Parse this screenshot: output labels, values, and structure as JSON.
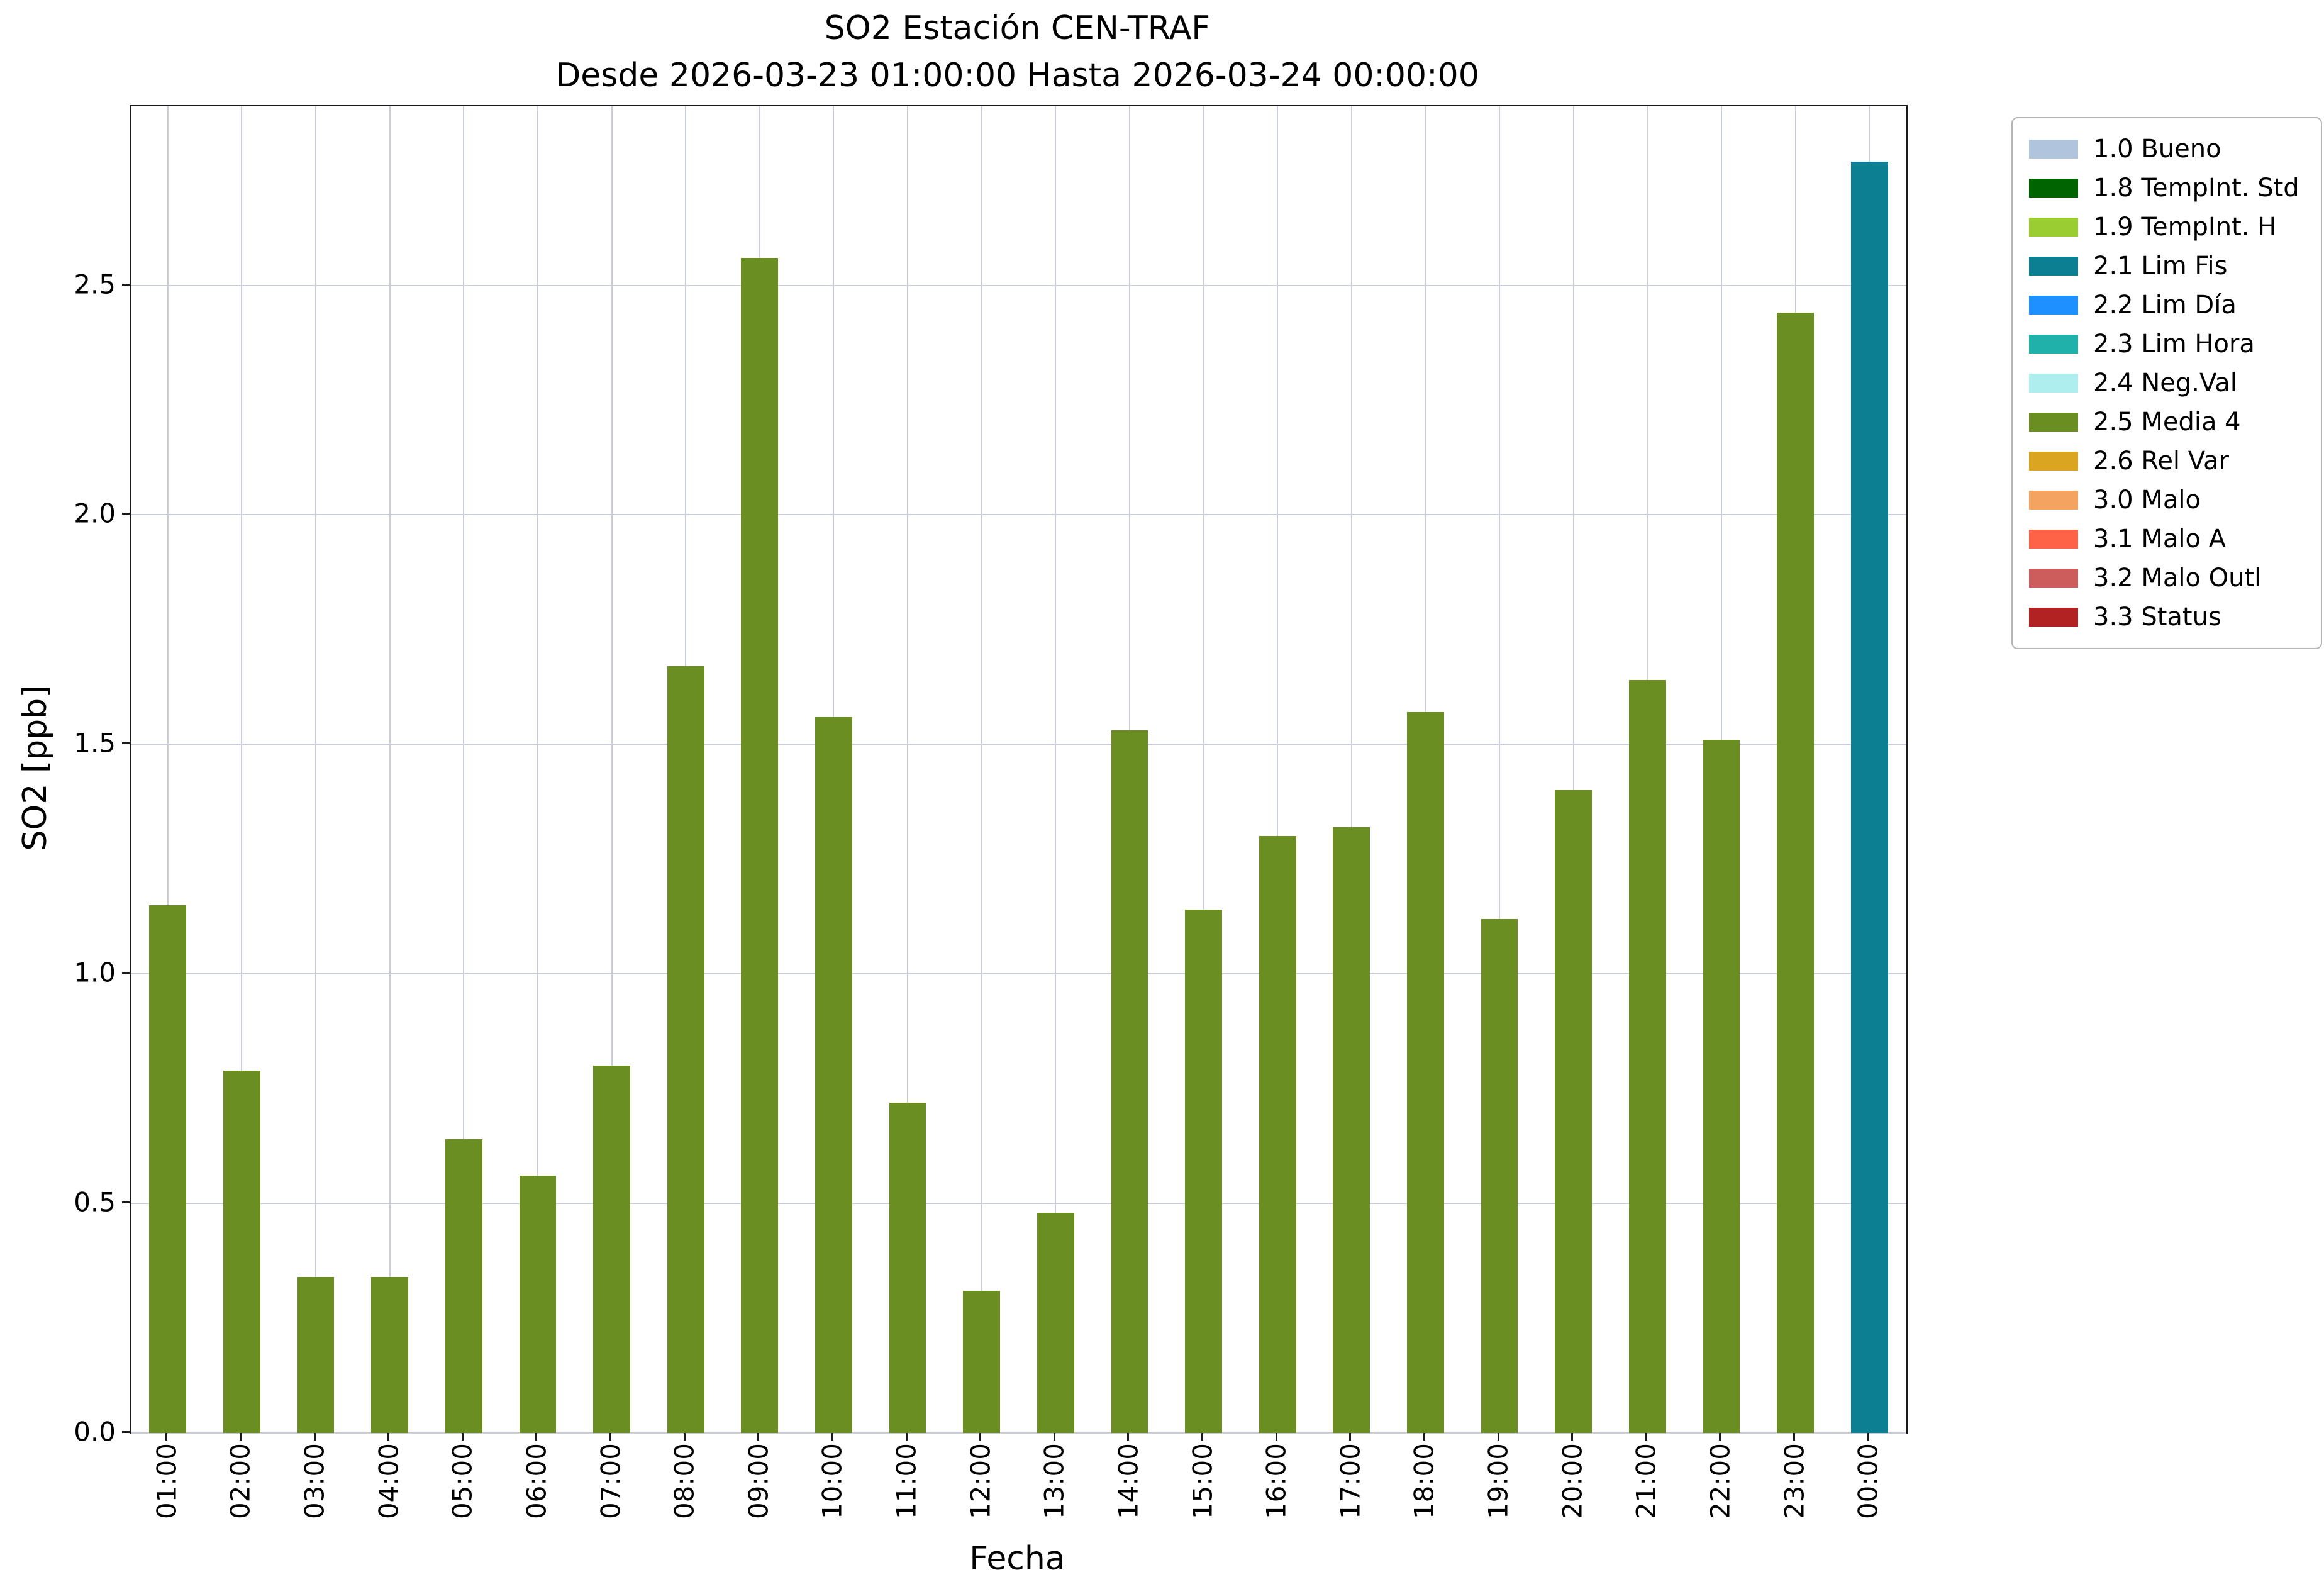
{
  "chart_data": {
    "type": "bar",
    "title": "SO2 Estación CEN-TRAF\nDesde 2026-03-23 01:00:00 Hasta 2026-03-24 00:00:00",
    "title_line1": "SO2 Estación CEN-TRAF",
    "title_line2": "Desde 2026-03-23 01:00:00 Hasta 2026-03-24 00:00:00",
    "xlabel": "Fecha",
    "ylabel": "SO2 [ppb]",
    "ylim": [
      0,
      2.89
    ],
    "yticks": [
      0.0,
      0.5,
      1.0,
      1.5,
      2.0,
      2.5
    ],
    "grid": true,
    "categories": [
      "01:00",
      "02:00",
      "03:00",
      "04:00",
      "05:00",
      "06:00",
      "07:00",
      "08:00",
      "09:00",
      "10:00",
      "11:00",
      "12:00",
      "13:00",
      "14:00",
      "15:00",
      "16:00",
      "17:00",
      "18:00",
      "19:00",
      "20:00",
      "21:00",
      "22:00",
      "23:00",
      "00:00"
    ],
    "values": [
      1.15,
      0.79,
      0.34,
      0.34,
      0.64,
      0.56,
      0.8,
      1.67,
      2.56,
      1.56,
      0.72,
      0.31,
      0.48,
      1.53,
      1.14,
      1.3,
      1.32,
      1.57,
      1.12,
      1.4,
      1.64,
      1.51,
      2.44,
      2.77
    ],
    "bar_status_labels": [
      "2.5 Media 4",
      "2.5 Media 4",
      "2.5 Media 4",
      "2.5 Media 4",
      "2.5 Media 4",
      "2.5 Media 4",
      "2.5 Media 4",
      "2.5 Media 4",
      "2.5 Media 4",
      "2.5 Media 4",
      "2.5 Media 4",
      "2.5 Media 4",
      "2.5 Media 4",
      "2.5 Media 4",
      "2.5 Media 4",
      "2.5 Media 4",
      "2.5 Media 4",
      "2.5 Media 4",
      "2.5 Media 4",
      "2.5 Media 4",
      "2.5 Media 4",
      "2.5 Media 4",
      "2.5 Media 4",
      "2.1 Lim Fis"
    ],
    "bar_colors": [
      "#6B8E23",
      "#6B8E23",
      "#6B8E23",
      "#6B8E23",
      "#6B8E23",
      "#6B8E23",
      "#6B8E23",
      "#6B8E23",
      "#6B8E23",
      "#6B8E23",
      "#6B8E23",
      "#6B8E23",
      "#6B8E23",
      "#6B8E23",
      "#6B8E23",
      "#6B8E23",
      "#6B8E23",
      "#6B8E23",
      "#6B8E23",
      "#6B8E23",
      "#6B8E23",
      "#6B8E23",
      "#6B8E23",
      "#0C7F93"
    ],
    "legend_position": "outside-right-top",
    "legend": [
      {
        "label": "1.0 Bueno",
        "color": "#B0C4DE"
      },
      {
        "label": "1.8 TempInt. Std",
        "color": "#006400"
      },
      {
        "label": "1.9 TempInt. H",
        "color": "#9ACD32"
      },
      {
        "label": "2.1 Lim Fis",
        "color": "#0C7F93"
      },
      {
        "label": "2.2 Lim Día",
        "color": "#1E90FF"
      },
      {
        "label": "2.3 Lim Hora",
        "color": "#20B2AA"
      },
      {
        "label": "2.4 Neg.Val",
        "color": "#AFEEEE"
      },
      {
        "label": "2.5 Media 4",
        "color": "#6B8E23"
      },
      {
        "label": "2.6 Rel Var",
        "color": "#DAA520"
      },
      {
        "label": "3.0 Malo",
        "color": "#F4A460"
      },
      {
        "label": "3.1 Malo A",
        "color": "#FF6347"
      },
      {
        "label": "3.2 Malo Outl",
        "color": "#CD5C5C"
      },
      {
        "label": "3.3 Status",
        "color": "#B22222"
      }
    ]
  }
}
